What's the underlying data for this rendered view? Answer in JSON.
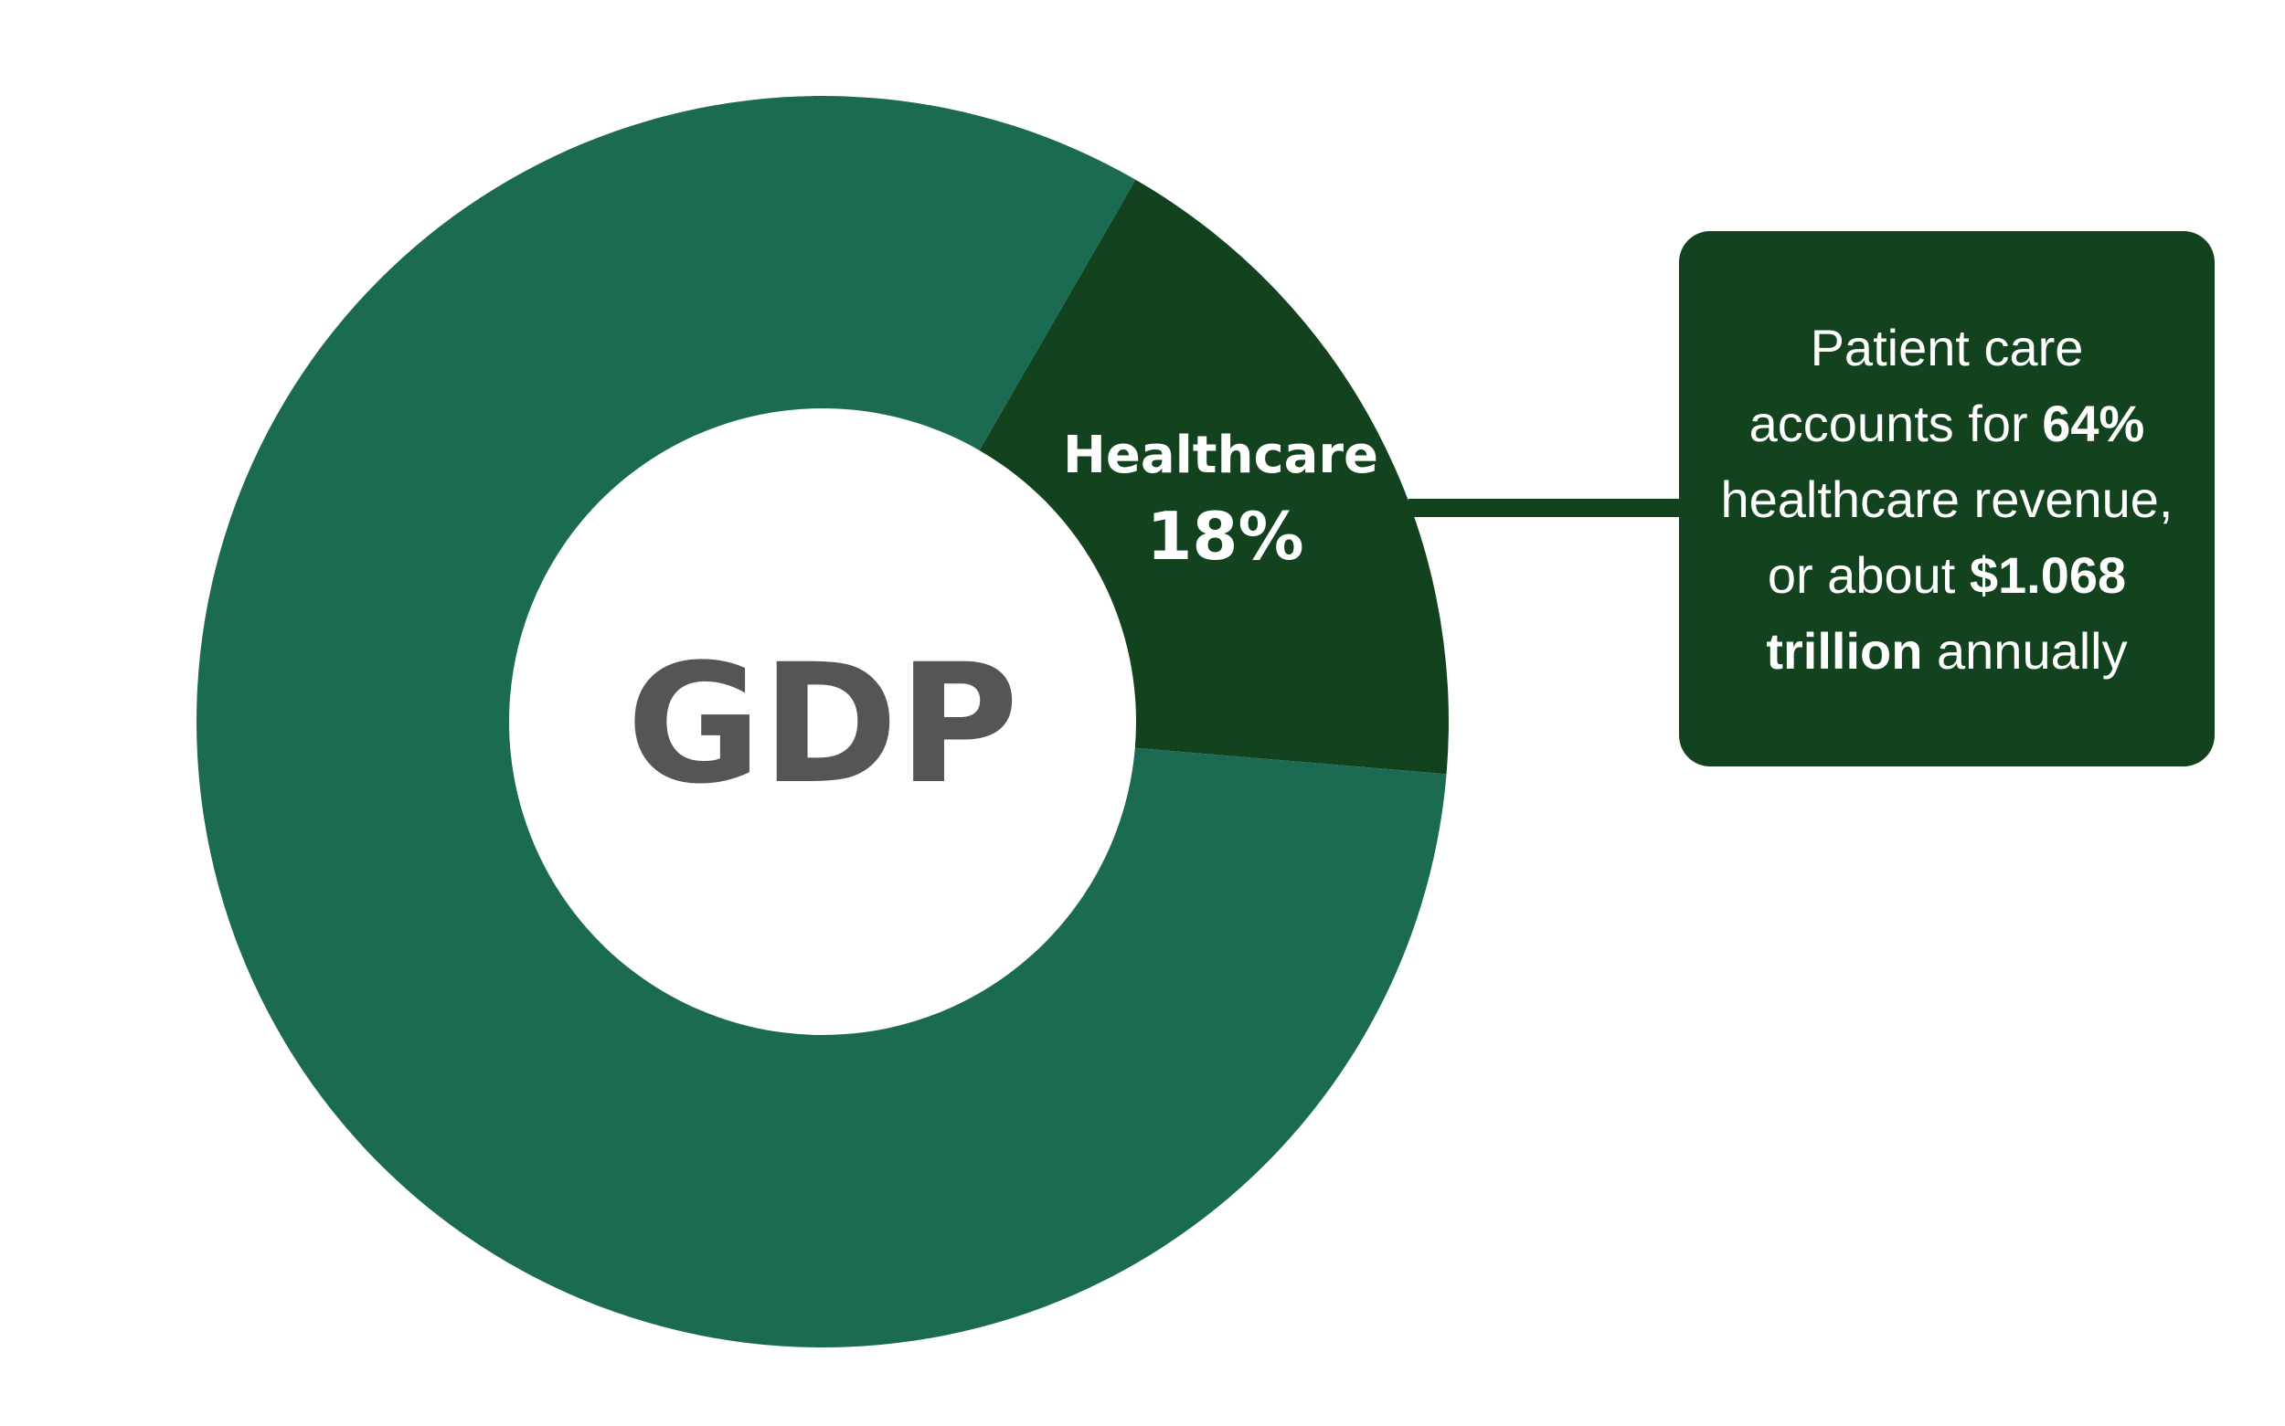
{
  "chart_data": {
    "type": "pie",
    "donut": true,
    "center_label": "GDP",
    "categories": [
      "Healthcare",
      null
    ],
    "values": [
      18,
      82
    ],
    "value_labels": [
      "18%",
      null
    ],
    "colors": [
      "#13421e",
      "#1a6b52"
    ],
    "annotation": [
      {
        "text": "Patient care accounts for ",
        "bold": false
      },
      {
        "text": "64%",
        "bold": true
      },
      {
        "text": " healthcare revenue, or about ",
        "bold": false
      },
      {
        "text": "$1.068 trillion",
        "bold": true
      },
      {
        "text": " annually",
        "bold": false
      }
    ],
    "annotation_color": "#13421e"
  }
}
